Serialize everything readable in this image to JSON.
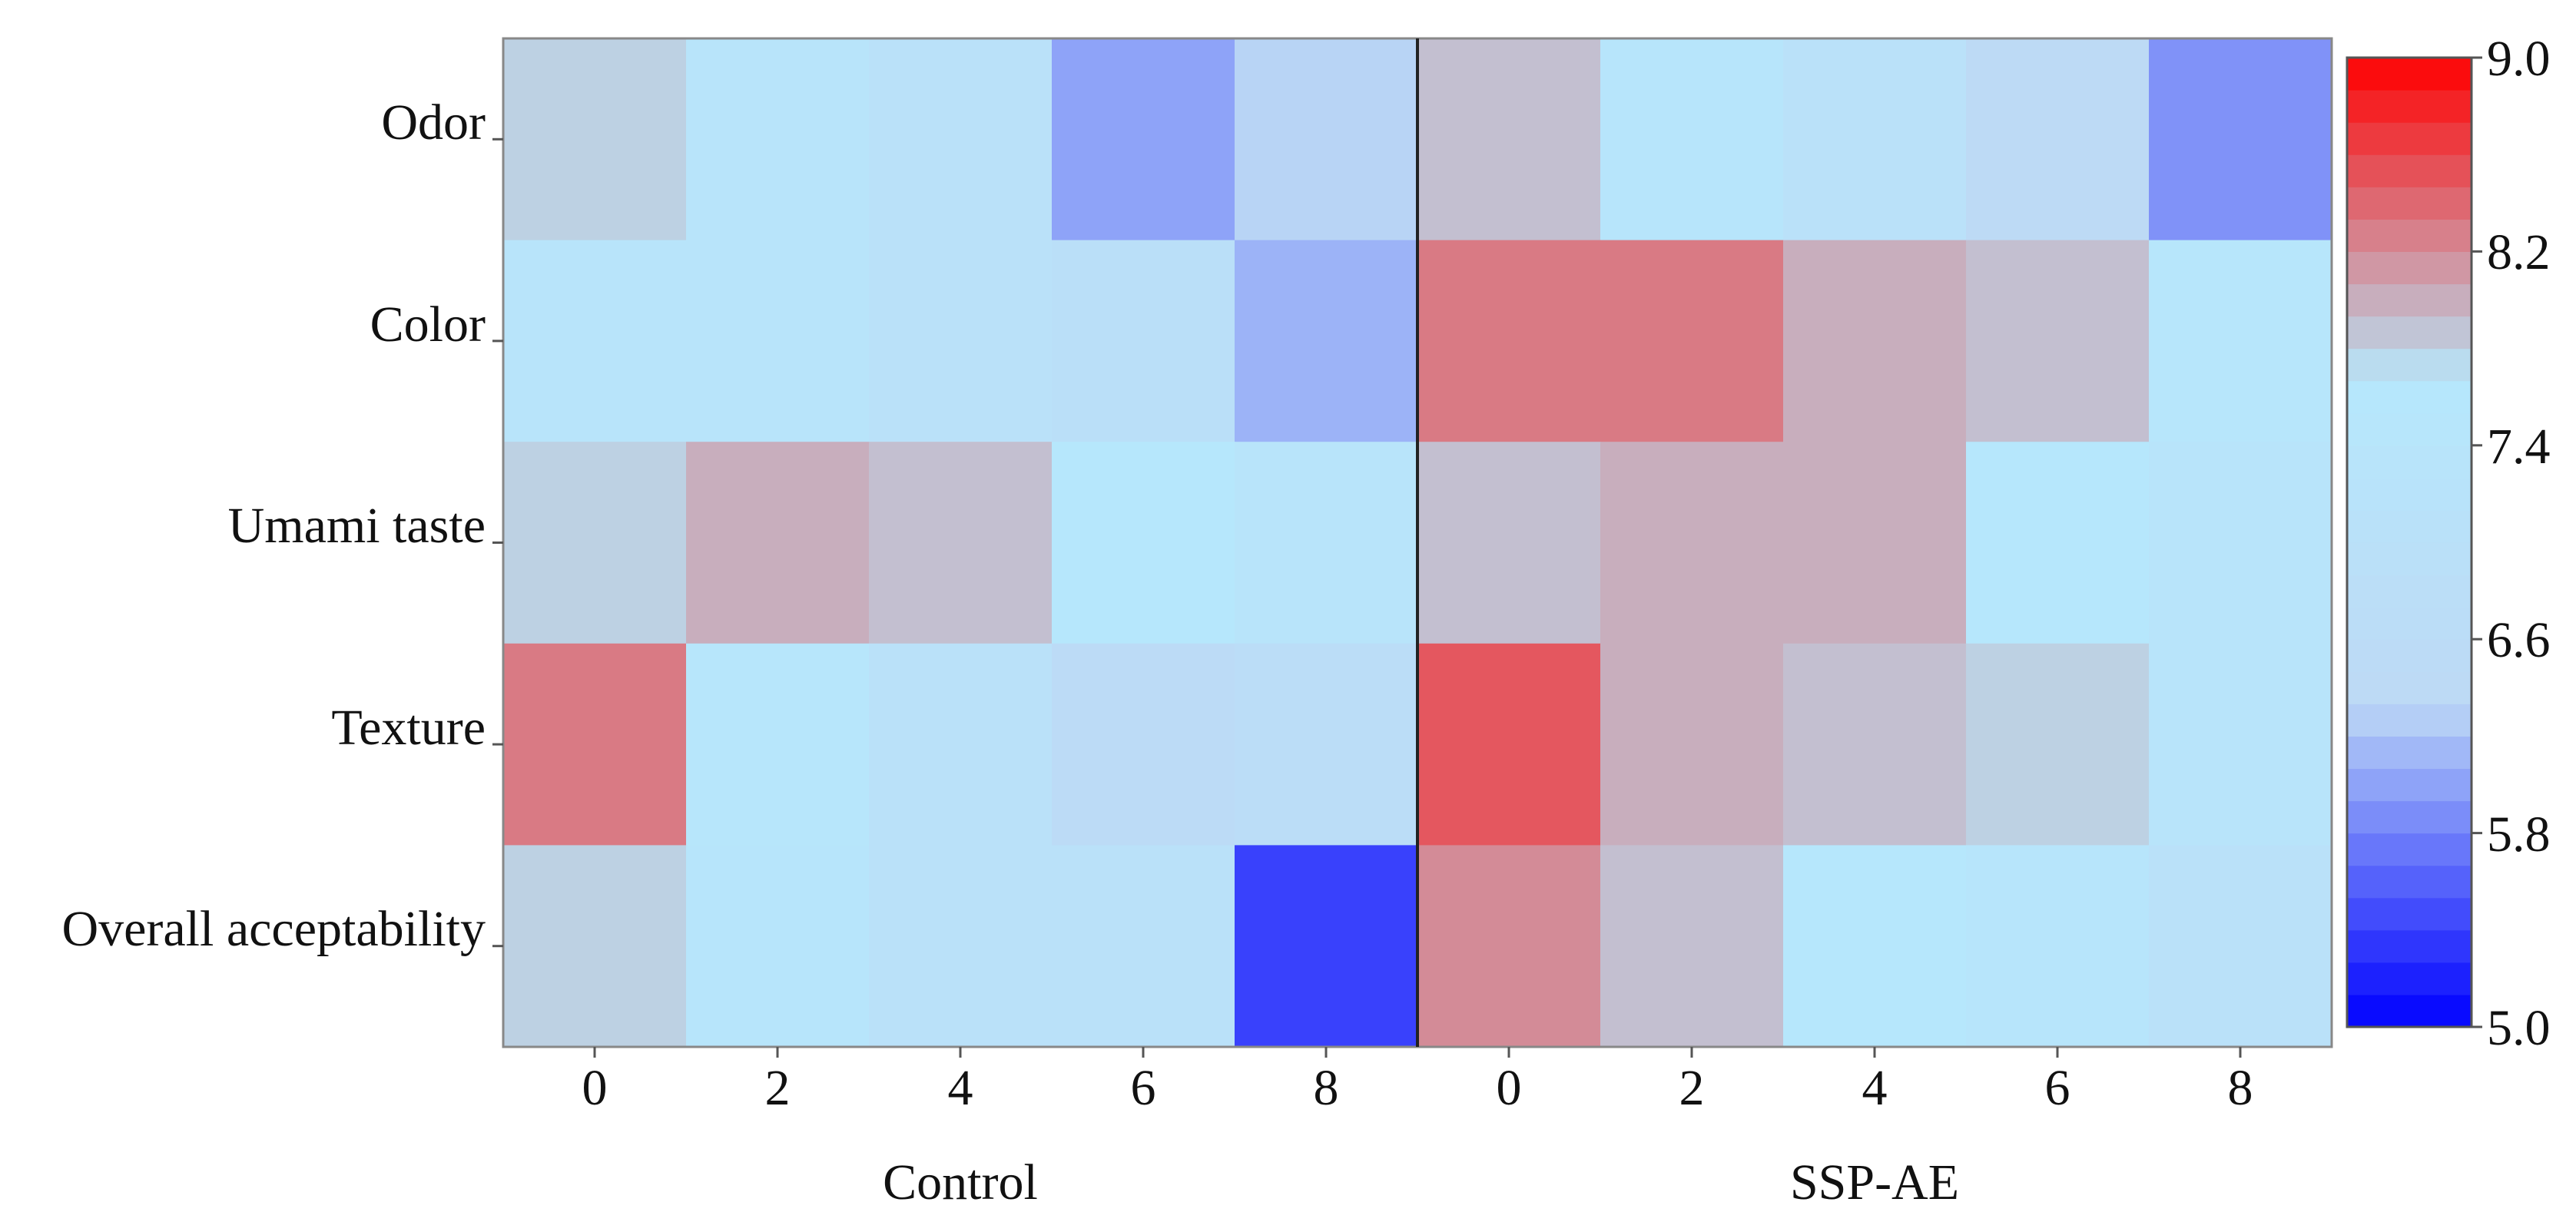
{
  "chart_data": {
    "type": "heatmap",
    "title": "",
    "groups": [
      "Control",
      "SSP-AE"
    ],
    "columns": [
      "0",
      "2",
      "4",
      "6",
      "8"
    ],
    "rows": [
      "Odor",
      "Color",
      "Umami taste",
      "Texture",
      "Overall acceptability"
    ],
    "values": {
      "Control": [
        [
          7.8,
          7.3,
          7.0,
          6.0,
          6.3
        ],
        [
          7.3,
          7.3,
          7.0,
          6.9,
          6.1
        ],
        [
          7.8,
          8.0,
          7.9,
          7.6,
          7.3
        ],
        [
          8.3,
          7.5,
          7.0,
          6.5,
          6.7
        ],
        [
          7.8,
          7.4,
          7.0,
          7.0,
          5.4
        ]
      ],
      "SSP-AE": [
        [
          7.9,
          7.4,
          7.0,
          6.4,
          5.9
        ],
        [
          8.3,
          8.3,
          8.0,
          7.9,
          7.5
        ],
        [
          7.9,
          8.0,
          8.0,
          7.6,
          7.3
        ],
        [
          8.5,
          8.0,
          7.9,
          7.8,
          7.3
        ],
        [
          8.2,
          7.9,
          7.6,
          7.4,
          7.0
        ]
      ]
    },
    "colorbar": {
      "min": 5.0,
      "max": 9.0,
      "levels": 30,
      "ticks": [
        "5.0",
        "5.8",
        "6.6",
        "7.4",
        "8.2",
        "9.0"
      ],
      "colors": [
        "#0000ff",
        "#bdd9f5",
        "#b6e8fc",
        "#ff0000"
      ]
    }
  }
}
